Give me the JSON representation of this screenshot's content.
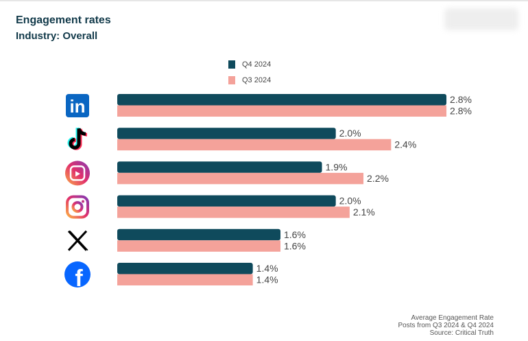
{
  "chart_data": {
    "type": "bar",
    "orientation": "horizontal",
    "title": "Engagement rates",
    "subtitle": "Industry: Overall",
    "categories": [
      "LinkedIn",
      "TikTok",
      "Instagram Reels",
      "Instagram",
      "X",
      "Facebook"
    ],
    "icons": [
      "linkedin-icon",
      "tiktok-icon",
      "instagram-reels-icon",
      "instagram-icon",
      "x-icon",
      "facebook-icon"
    ],
    "series": [
      {
        "name": "Q4 2024",
        "color": "#0f4a5c",
        "values": [
          2.8,
          2.0,
          1.9,
          2.0,
          1.6,
          1.4
        ],
        "labels": [
          "2.8%",
          "2.0%",
          "1.9%",
          "2.0%",
          "1.6%",
          "1.4%"
        ]
      },
      {
        "name": "Q3 2024",
        "color": "#f4a29a",
        "values": [
          2.8,
          2.4,
          2.2,
          2.1,
          1.6,
          1.4
        ],
        "labels": [
          "2.8%",
          "2.4%",
          "2.2%",
          "2.1%",
          "1.6%",
          "1.4%"
        ]
      }
    ],
    "legend_position": "top",
    "grid": false,
    "notes": [
      "Average Engagement Rate",
      "Posts from Q3 2024 & Q4 2024",
      "Source: Critical Truth"
    ]
  }
}
